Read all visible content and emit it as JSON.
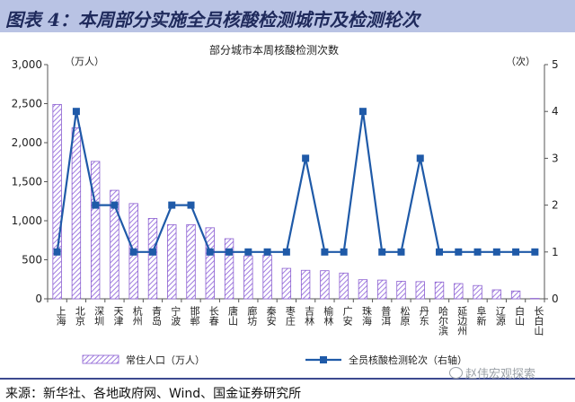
{
  "header": {
    "title": "图表 4：本周部分实施全员核酸检测城市及检测轮次"
  },
  "footer": {
    "source": "来源：新华社、各地政府网、Wind、国金证券研究所"
  },
  "watermark": {
    "text": "赵伟宏观探索"
  },
  "colors": {
    "header_band": "#b9c3e4",
    "bar_stroke": "#8b5fd0",
    "bar_hatch": "#a07be0",
    "line": "#1f5aa8",
    "text_dark": "#1f2a5c"
  },
  "chart_data": {
    "type": "bar+line",
    "title": "部分城市本周核酸检测次数",
    "left_unit": "（万人）",
    "right_unit": "（次）",
    "categories": [
      "上海",
      "北京",
      "深圳",
      "天津",
      "杭州",
      "青岛",
      "宁波",
      "邯郸",
      "长春",
      "唐山",
      "廊坊",
      "秦安",
      "枣庄",
      "吉林",
      "榆林",
      "广安",
      "珠海",
      "普洱",
      "松原",
      "丹东",
      "哈尔滨",
      "延边州",
      "阜新",
      "辽源",
      "白山",
      "长白山"
    ],
    "y_left": {
      "min": 0,
      "max": 3000,
      "ticks": [
        0,
        500,
        1000,
        1500,
        2000,
        2500,
        3000
      ],
      "tick_labels": [
        "0",
        "500",
        "1,000",
        "1,500",
        "2,000",
        "2,500",
        "3,000"
      ]
    },
    "y_right": {
      "min": 0,
      "max": 5,
      "ticks": [
        0,
        1,
        2,
        3,
        4,
        5
      ],
      "tick_labels": [
        "0",
        "1",
        "2",
        "3",
        "4",
        "5"
      ]
    },
    "series": [
      {
        "name": "常住人口（万人）",
        "type": "bar",
        "axis": "left",
        "values": [
          2490,
          2190,
          1760,
          1390,
          1220,
          1030,
          950,
          950,
          910,
          770,
          550,
          560,
          390,
          365,
          360,
          330,
          245,
          240,
          225,
          220,
          215,
          195,
          170,
          115,
          100,
          5
        ]
      },
      {
        "name": "全员核酸检测轮次（右轴）",
        "type": "line",
        "axis": "right",
        "values": [
          1,
          4,
          2,
          2,
          1,
          1,
          2,
          2,
          1,
          1,
          1,
          1,
          1,
          3,
          1,
          1,
          4,
          1,
          1,
          3,
          1,
          1,
          1,
          1,
          1,
          1
        ]
      }
    ],
    "legend_position": "bottom"
  }
}
